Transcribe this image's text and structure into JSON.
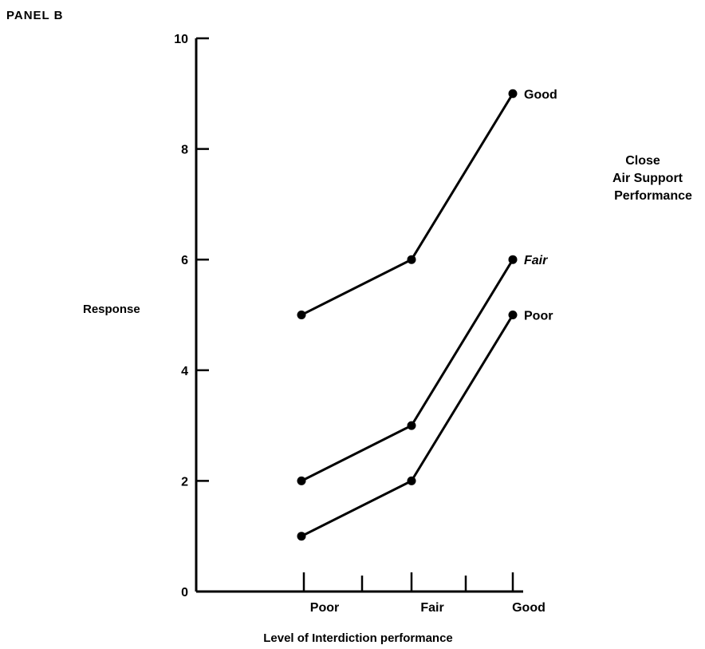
{
  "panel_label": "PANEL B",
  "chart_data": {
    "type": "line",
    "title": "",
    "xlabel": "Level of Interdiction performance",
    "ylabel": "Response",
    "categories": [
      "Poor",
      "Fair",
      "Good"
    ],
    "ylim": [
      0,
      10
    ],
    "yticks": [
      "0",
      "2",
      "4",
      "6",
      "8",
      "10"
    ],
    "grid": false,
    "legend": {
      "title_lines": [
        "Close",
        "Air Support",
        "Performance"
      ],
      "placement": "right"
    },
    "series": [
      {
        "name": "Good",
        "values": [
          5,
          6,
          9
        ]
      },
      {
        "name": "Fair",
        "values": [
          2,
          3,
          6
        ]
      },
      {
        "name": "Poor",
        "values": [
          1,
          2,
          5
        ]
      }
    ]
  }
}
